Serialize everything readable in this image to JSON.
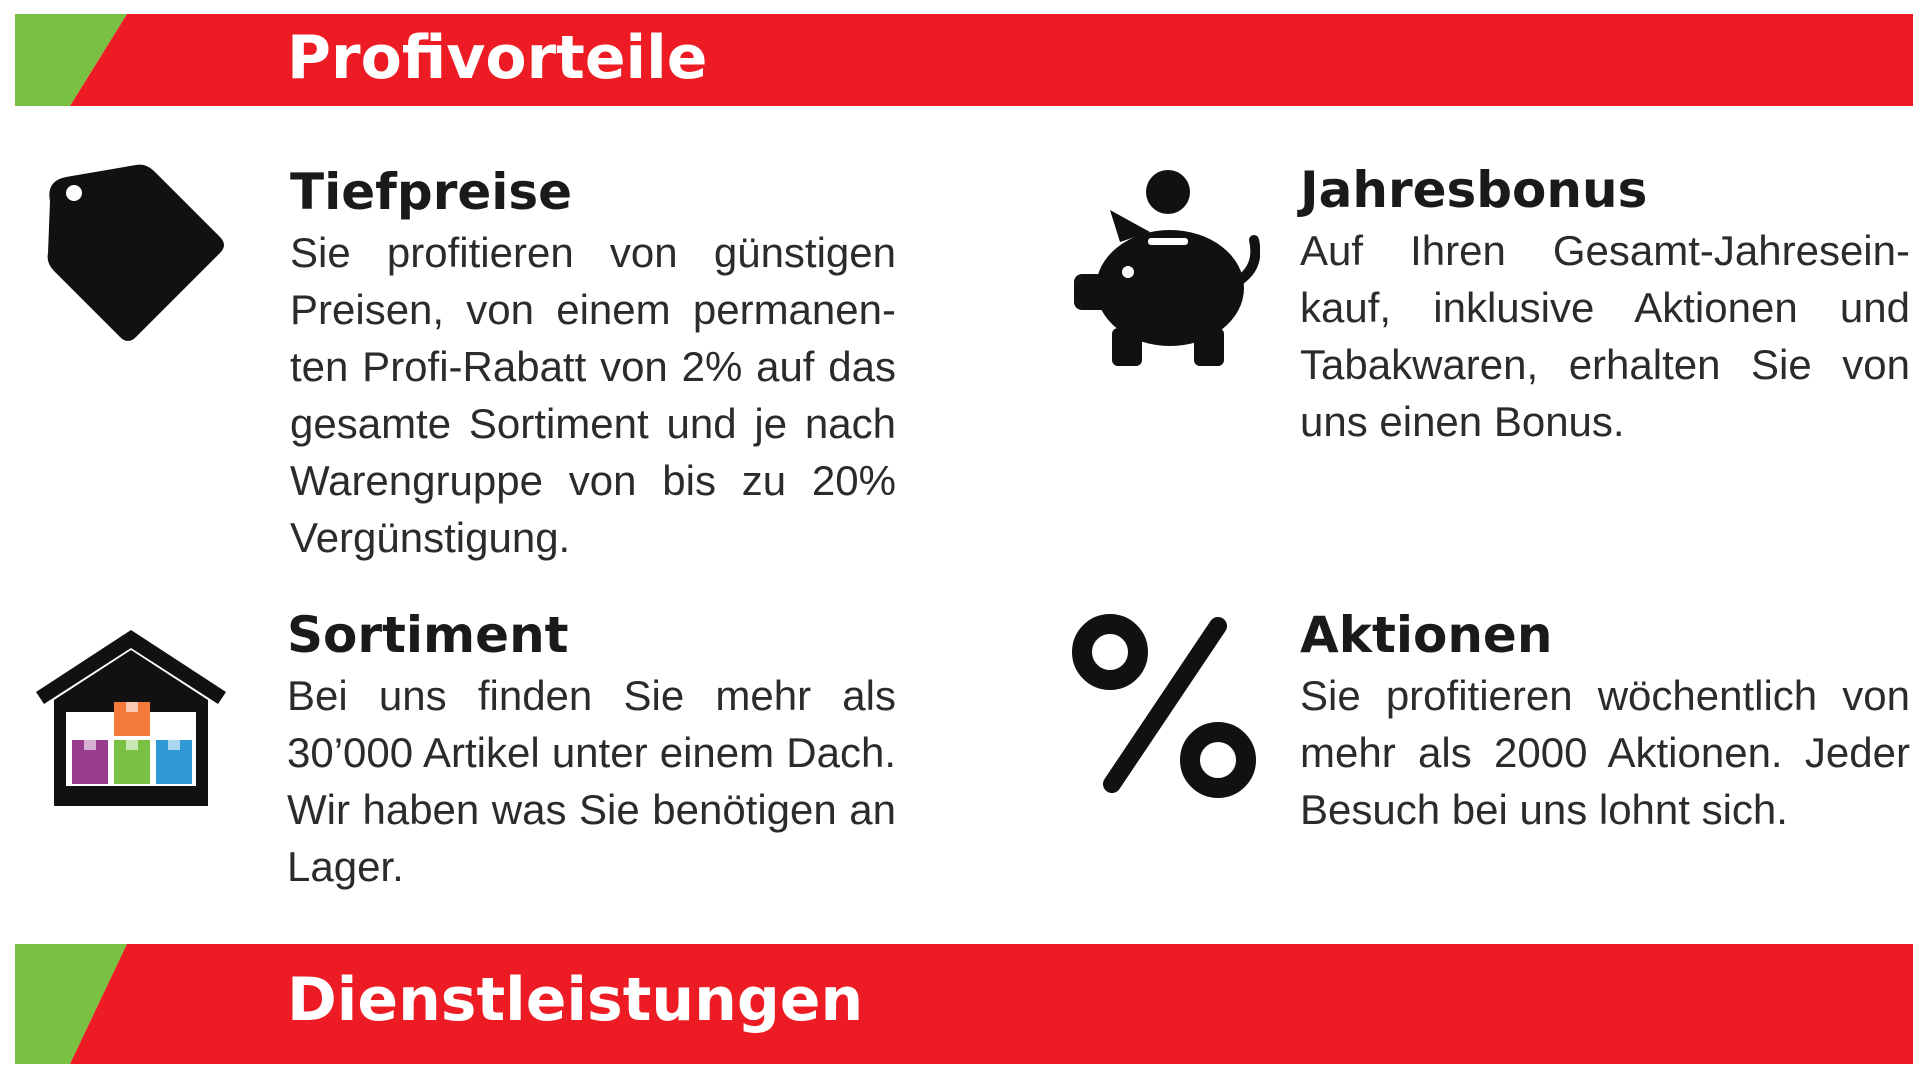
{
  "banners": {
    "top_title": "Profivorteile",
    "bottom_title": "Dienstleistungen",
    "colors": {
      "red": "#ed1c24",
      "green": "#7ac143"
    }
  },
  "features": [
    {
      "icon": "price-tag-icon",
      "title": "Tiefpreise",
      "text": "Sie profitieren von günstigen Preisen, von einem permanen­ten Profi-Rabatt von 2% auf das gesamte Sortiment und je nach Warengruppe von bis zu 20% Vergünstigung."
    },
    {
      "icon": "piggy-bank-icon",
      "title": "Jahresbonus",
      "text": "Auf Ihren Gesamt-Jahresein­kauf, inklusive Aktionen und Tabakwaren, erhalten Sie von uns einen Bonus."
    },
    {
      "icon": "warehouse-icon",
      "title": "Sortiment",
      "text": "Bei uns finden Sie mehr als 30’000 Artikel unter einem Dach. Wir haben was Sie be­nötigen an Lager."
    },
    {
      "icon": "percent-icon",
      "title": "Aktionen",
      "text": "Sie profitieren wöchentlich von mehr als 2000 Aktionen. Jeder Besuch bei uns lohnt sich."
    }
  ]
}
